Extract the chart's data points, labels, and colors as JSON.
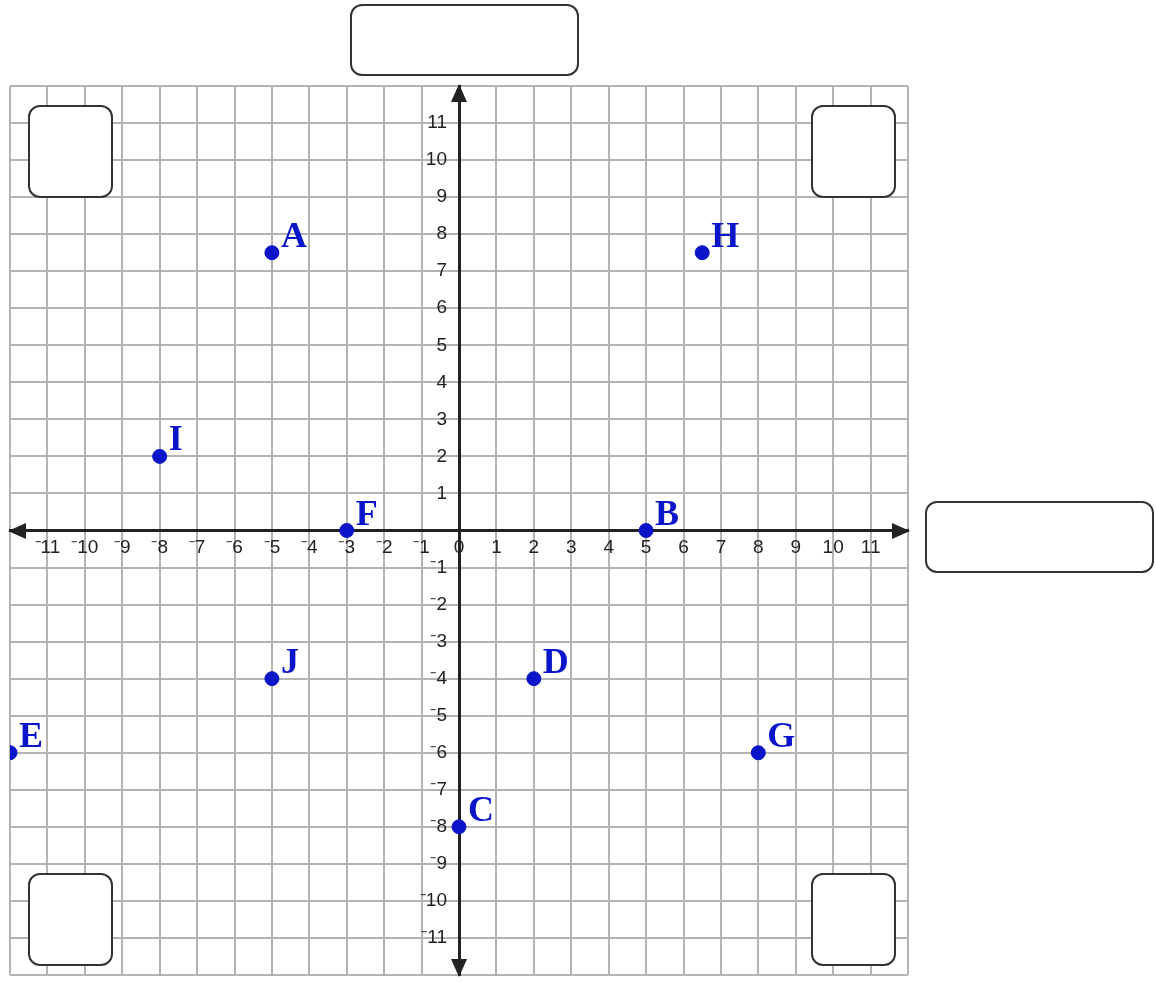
{
  "chart_data": {
    "type": "scatter",
    "marker": "circle",
    "grid": true,
    "series": [
      {
        "color": "#0a14c8",
        "x": [
          -5,
          5,
          0,
          2,
          -12,
          -3,
          8,
          6.5,
          -8,
          -5
        ],
        "values": [
          7.5,
          0,
          -8,
          -4,
          -6,
          0,
          -6,
          7.5,
          2,
          -4
        ]
      }
    ],
    "annotations": [
      {
        "text": "A",
        "x": -5,
        "y": 7.5
      },
      {
        "text": "B",
        "x": 5,
        "y": 0
      },
      {
        "text": "C",
        "x": 0,
        "y": -8
      },
      {
        "text": "D",
        "x": 2,
        "y": -4
      },
      {
        "text": "E",
        "x": -12,
        "y": -6
      },
      {
        "text": "F",
        "x": -3,
        "y": 0
      },
      {
        "text": "G",
        "x": 8,
        "y": -6
      },
      {
        "text": "H",
        "x": 6.5,
        "y": 7.5
      },
      {
        "text": "I",
        "x": -8,
        "y": 2
      },
      {
        "text": "J",
        "x": -5,
        "y": -4
      }
    ],
    "xlim": [
      -12,
      12
    ],
    "ylim": [
      -12,
      12
    ],
    "xticks": [
      {
        "value": -12,
        "label": null
      },
      {
        "value": -11,
        "label": "⁻11"
      },
      {
        "value": -10,
        "label": "⁻10"
      },
      {
        "value": -9,
        "label": "⁻9"
      },
      {
        "value": -8,
        "label": "⁻8"
      },
      {
        "value": -7,
        "label": "⁻7"
      },
      {
        "value": -6,
        "label": "⁻6"
      },
      {
        "value": -5,
        "label": "⁻5"
      },
      {
        "value": -4,
        "label": "⁻4"
      },
      {
        "value": -3,
        "label": "⁻3"
      },
      {
        "value": -2,
        "label": "⁻2"
      },
      {
        "value": -1,
        "label": "⁻1"
      },
      0,
      1,
      2,
      3,
      4,
      5,
      6,
      7,
      8,
      9,
      10,
      11,
      {
        "value": 12,
        "label": null
      }
    ],
    "yticks": [
      {
        "value": -12,
        "label": null
      },
      {
        "value": -11,
        "label": "⁻11"
      },
      {
        "value": -10,
        "label": "⁻10"
      },
      {
        "value": -9,
        "label": "⁻9"
      },
      {
        "value": -8,
        "label": "⁻8"
      },
      {
        "value": -7,
        "label": "⁻7"
      },
      {
        "value": -6,
        "label": "⁻6"
      },
      {
        "value": -5,
        "label": "⁻5"
      },
      {
        "value": -4,
        "label": "⁻4"
      },
      {
        "value": -3,
        "label": "⁻3"
      },
      {
        "value": -2,
        "label": "⁻2"
      },
      {
        "value": -1,
        "label": "⁻1"
      },
      {
        "value": 0,
        "label": null
      },
      1,
      2,
      3,
      4,
      5,
      6,
      7,
      8,
      9,
      10,
      11,
      {
        "value": 12,
        "label": null
      }
    ]
  }
}
